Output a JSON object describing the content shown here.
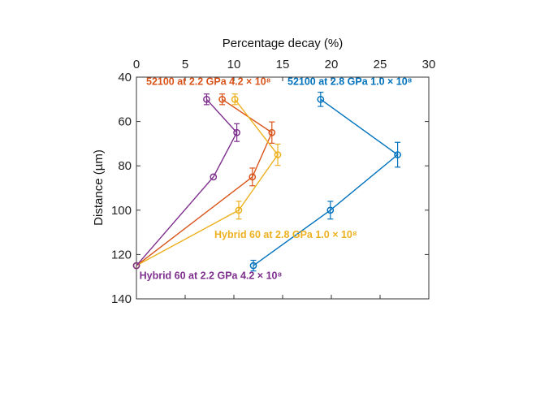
{
  "chart_data": {
    "type": "line",
    "title": "",
    "xlabel": "Percentage decay (%)",
    "ylabel": "Distance (µm)",
    "xlim": [
      0,
      30
    ],
    "ylim": [
      40,
      140
    ],
    "y_reversed": true,
    "x_axis_position": "top",
    "xticks": [
      "0",
      "5",
      "10",
      "15",
      "20",
      "25",
      "30"
    ],
    "yticks": [
      "40",
      "60",
      "80",
      "100",
      "120",
      "140"
    ],
    "grid": false,
    "legend": "inline-annotations",
    "series": [
      {
        "name": "52100 at 2.2 GPa 4.2 × 10⁸",
        "color": "#d95319",
        "points": [
          {
            "x": 8.8,
            "y": 50,
            "err": 0.3
          },
          {
            "x": 13.9,
            "y": 65,
            "err": 0.6
          },
          {
            "x": 11.9,
            "y": 85,
            "err": 0.5
          },
          {
            "x": 0,
            "y": 125,
            "err": 0
          }
        ]
      },
      {
        "name": "52100 at 2.8 GPa 1.0 × 10⁸",
        "color": "#0072bd",
        "points": [
          {
            "x": 18.9,
            "y": 50,
            "err": 0.4
          },
          {
            "x": 26.8,
            "y": 75,
            "err": 0.7
          },
          {
            "x": 19.9,
            "y": 100,
            "err": 0.5
          },
          {
            "x": 12.0,
            "y": 125,
            "err": 0.3
          }
        ]
      },
      {
        "name": "Hybrid 60 at 2.8 GPa 1.0 × 10⁸",
        "color": "#edb120",
        "points": [
          {
            "x": 10.1,
            "y": 50,
            "err": 0.3
          },
          {
            "x": 14.5,
            "y": 75,
            "err": 0.6
          },
          {
            "x": 10.5,
            "y": 100,
            "err": 0.5
          },
          {
            "x": 0,
            "y": 125,
            "err": 0
          }
        ]
      },
      {
        "name": "Hybrid 60 at 2.2 GPa 4.2 × 10⁸",
        "color": "#7e2f8e",
        "points": [
          {
            "x": 7.2,
            "y": 50,
            "err": 0.3
          },
          {
            "x": 10.3,
            "y": 65,
            "err": 0.5
          },
          {
            "x": 7.9,
            "y": 85,
            "err": 0
          },
          {
            "x": 0,
            "y": 125,
            "err": 0
          }
        ]
      }
    ],
    "annotations": [
      {
        "text": "52100 at 2.2 GPa 4.2 × 10⁸",
        "series": 0,
        "x": 1.0,
        "y": 43.5
      },
      {
        "text": "52100 at 2.8 GPa 1.0 × 10⁸",
        "series": 1,
        "x": 15.5,
        "y": 43.5
      },
      {
        "text": "Hybrid 60 at 2.8 GPa 1.0 × 10⁸",
        "series": 2,
        "x": 8.0,
        "y": 112.5
      },
      {
        "text": "Hybrid 60 at 2.2 GPa 4.2 × 10⁸",
        "series": 3,
        "x": 0.3,
        "y": 131
      }
    ]
  }
}
